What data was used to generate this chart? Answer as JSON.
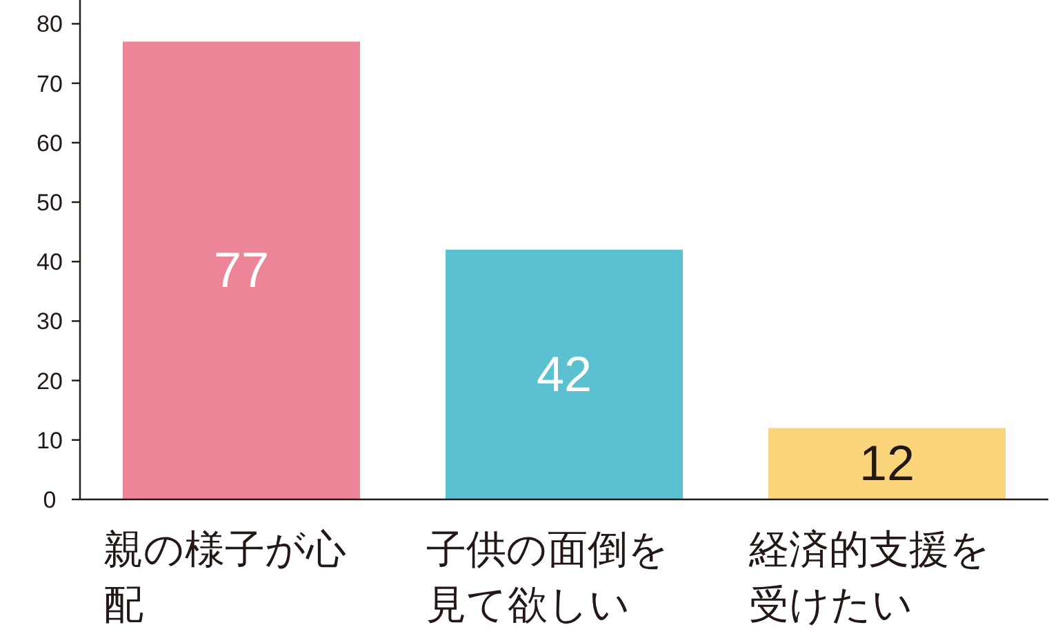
{
  "chart_data": {
    "type": "bar",
    "categories": [
      "親の様子が心配",
      "子供の面倒を見て欲しい",
      "経済的支援を受けたい"
    ],
    "values": [
      77,
      42,
      12
    ],
    "colors": [
      "#ec8598",
      "#5bc1d0",
      "#fbd57b"
    ],
    "ylim": [
      0,
      84
    ],
    "yticks": [
      0,
      10,
      20,
      30,
      40,
      50,
      60,
      70,
      80
    ],
    "data_labels": true
  }
}
